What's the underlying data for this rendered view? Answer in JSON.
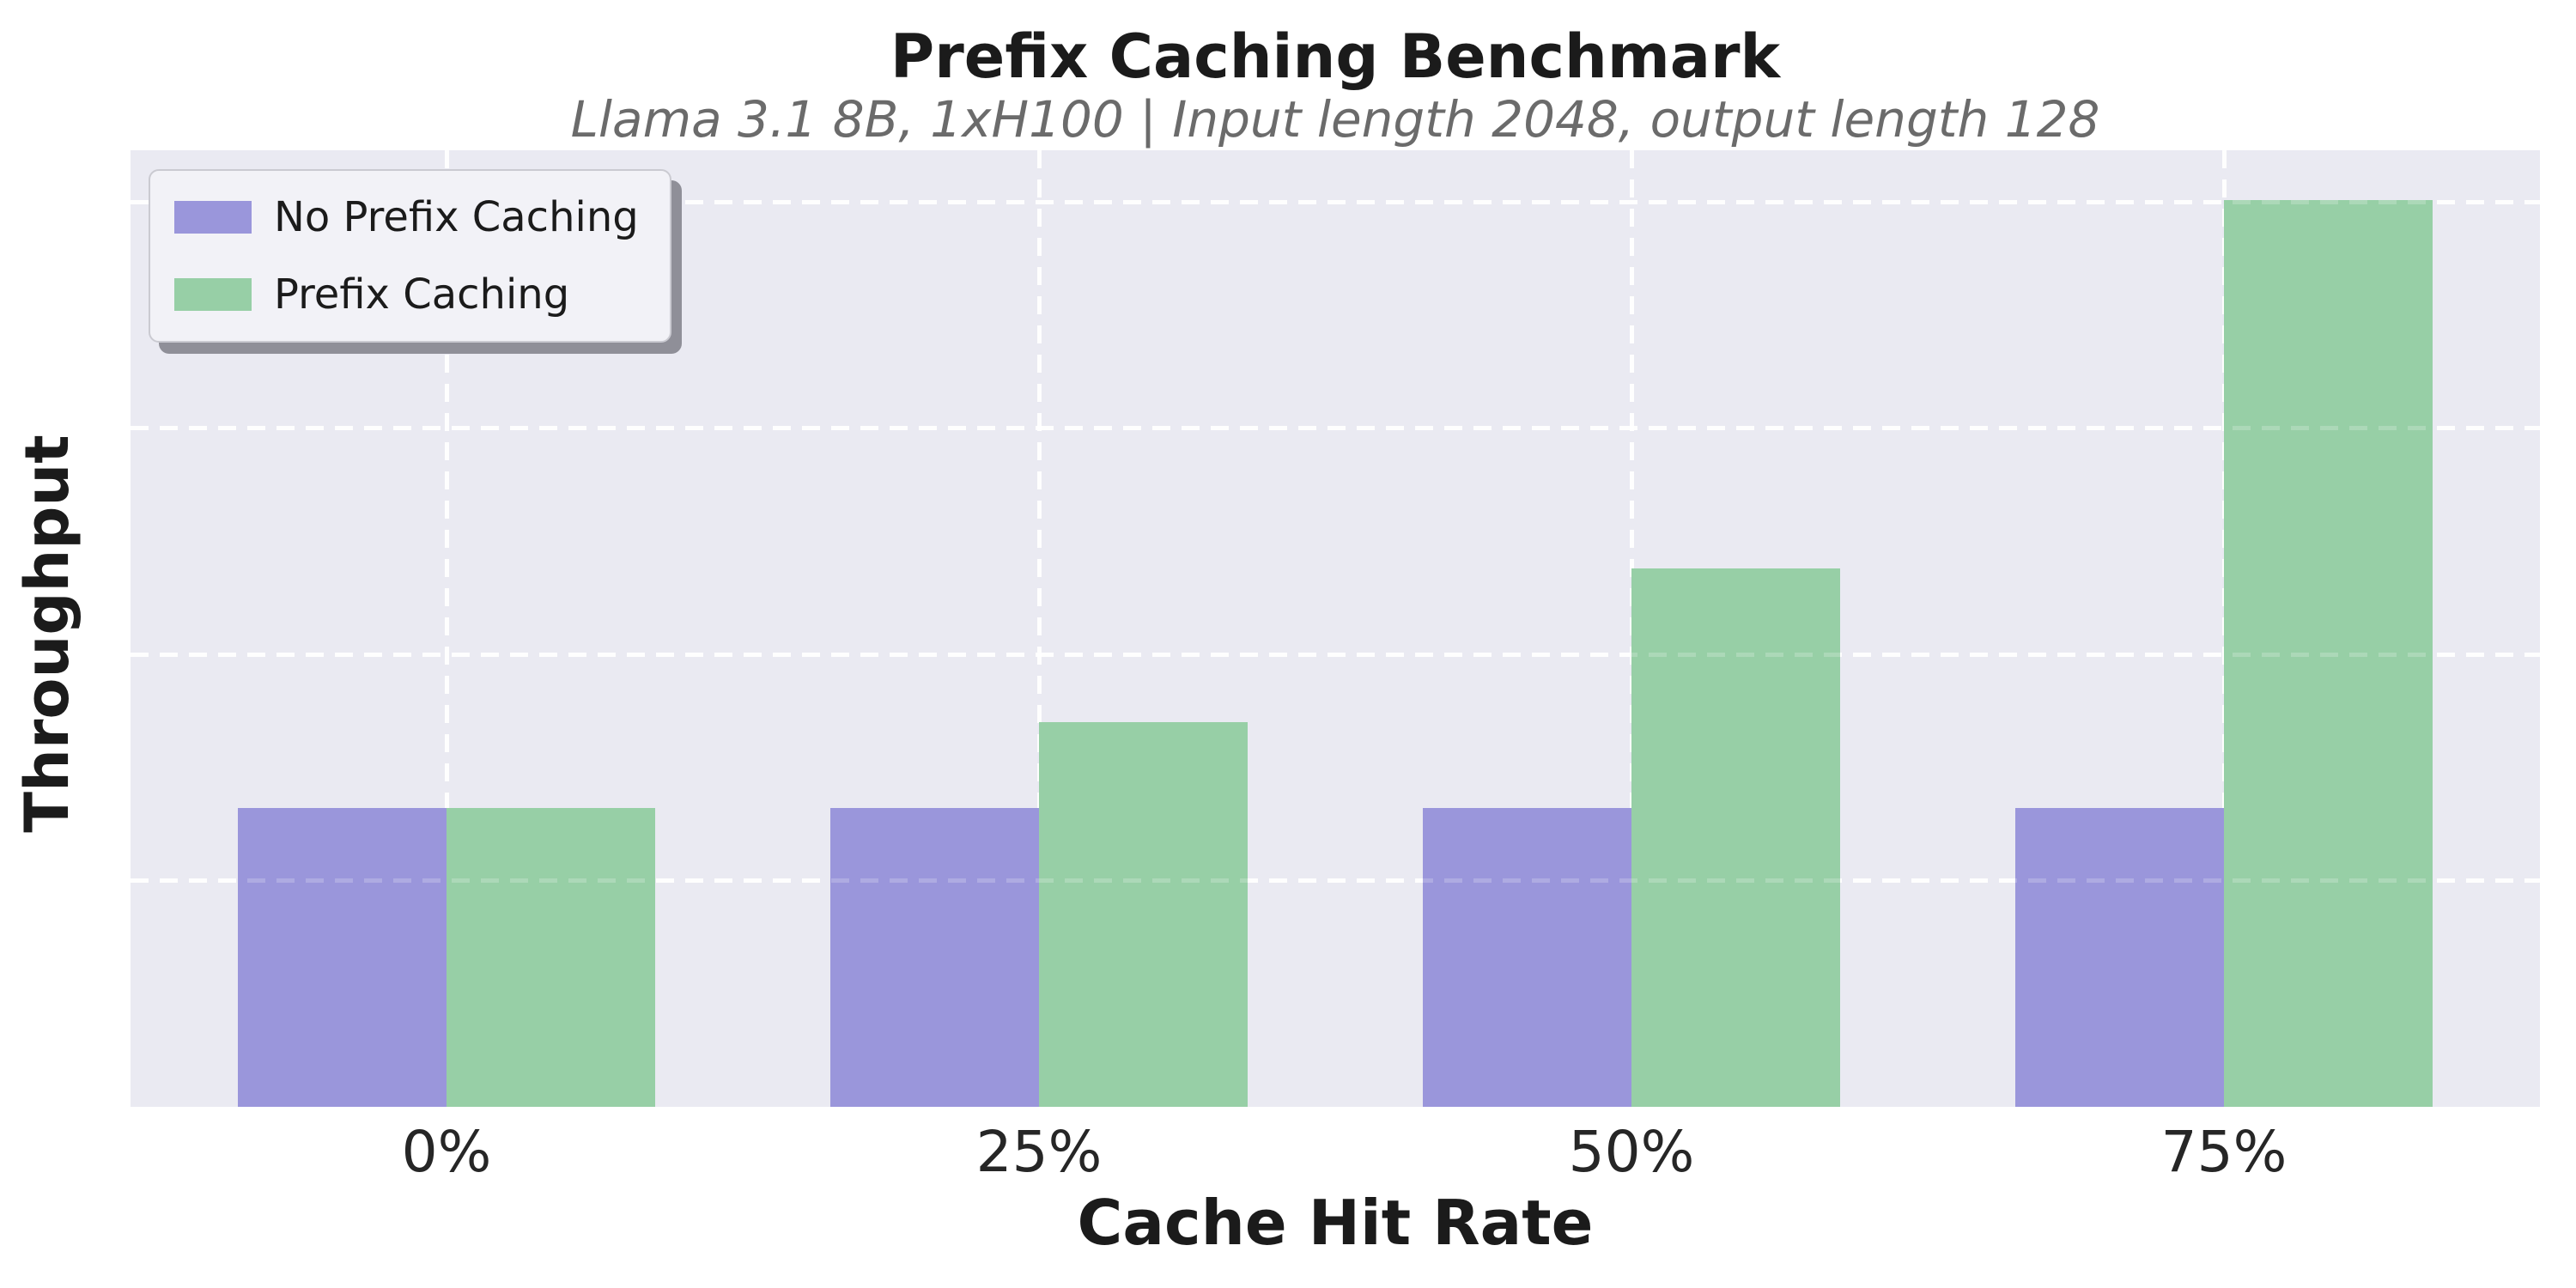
{
  "figure": {
    "title": "Prefix Caching Benchmark",
    "subtitle": "Llama 3.1 8B, 1xH100 | Input length 2048, output length 128",
    "xlabel": "Cache Hit Rate",
    "ylabel": "Throughput"
  },
  "legend": {
    "position": "upper left",
    "items": [
      {
        "label": "No Prefix Caching",
        "color": "#9a96db"
      },
      {
        "label": "Prefix Caching",
        "color": "#97cfa6"
      }
    ]
  },
  "colors": {
    "figure_background": "#ffffff",
    "plot_background": "#eaeaf2",
    "gridline": "#ffffff",
    "series_no_prefix": "#9a96db",
    "series_prefix": "#97cfa6",
    "title_text": "#1b1b1b",
    "subtitle_text": "#6b6b6b",
    "tick_text": "#262626"
  },
  "chart_data": {
    "type": "bar",
    "title": "Prefix Caching Benchmark",
    "subtitle": "Llama 3.1 8B, 1xH100 | Input length 2048, output length 128",
    "xlabel": "Cache Hit Rate",
    "ylabel": "Throughput",
    "categories": [
      "0%",
      "25%",
      "50%",
      "75%"
    ],
    "series": [
      {
        "name": "No Prefix Caching",
        "color": "#9a96db",
        "values": [
          1.32,
          1.32,
          1.32,
          1.32
        ]
      },
      {
        "name": "Prefix Caching",
        "color": "#97cfa6",
        "values": [
          1.32,
          1.7,
          2.38,
          4.01
        ]
      }
    ],
    "y_axis_unlabeled": true,
    "ylim": [
      0,
      4.23
    ],
    "yticks": [
      1,
      2,
      3,
      4
    ],
    "ytick_labels": [],
    "grid": "dashed white, horizontal at yticks and vertical at category centers",
    "legend_position": "upper left",
    "bar_width_category_fraction": 0.35
  }
}
